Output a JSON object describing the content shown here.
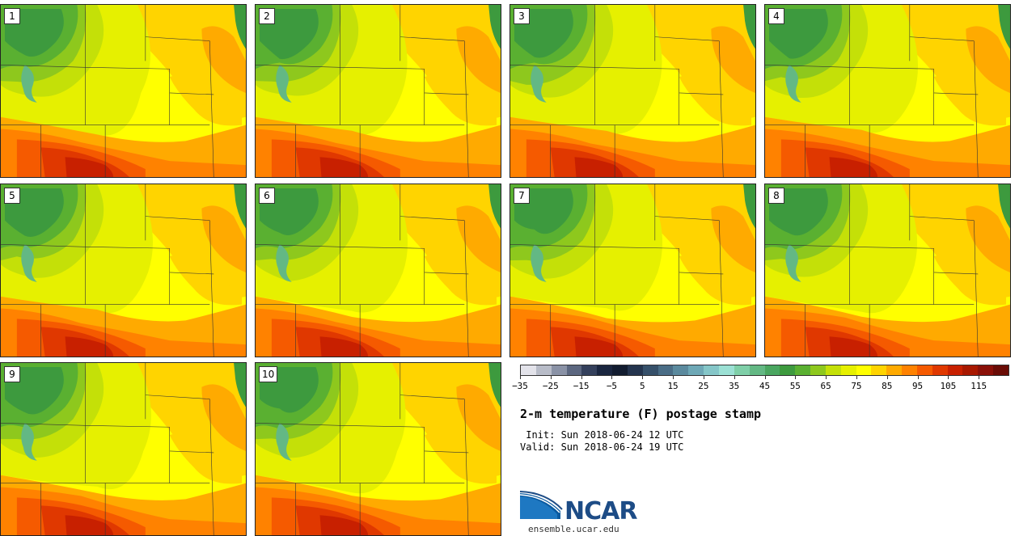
{
  "panels": [
    {
      "label": "1"
    },
    {
      "label": "2"
    },
    {
      "label": "3"
    },
    {
      "label": "4"
    },
    {
      "label": "5"
    },
    {
      "label": "6"
    },
    {
      "label": "7"
    },
    {
      "label": "8"
    },
    {
      "label": "9"
    },
    {
      "label": "10"
    }
  ],
  "colorbar": {
    "colors": [
      "#e3e3ea",
      "#b8bcc8",
      "#8a92a6",
      "#5c6780",
      "#34405c",
      "#1a2640",
      "#121c30",
      "#24344e",
      "#36506a",
      "#4a6d86",
      "#5b8a9e",
      "#6ea8b6",
      "#85c6c8",
      "#9be0d4",
      "#7fcfa8",
      "#63b884",
      "#4aa660",
      "#3d9a3e",
      "#5ab031",
      "#8ec81d",
      "#c4e008",
      "#e6f000",
      "#ffff00",
      "#ffd400",
      "#ffaa00",
      "#ff8200",
      "#f55a00",
      "#e03800",
      "#c82000",
      "#a81800",
      "#8a1008",
      "#6a0c06"
    ],
    "tick_labels": [
      "−35",
      "−25",
      "−15",
      "−5",
      "5",
      "15",
      "25",
      "35",
      "45",
      "55",
      "65",
      "75",
      "85",
      "95",
      "105",
      "115"
    ]
  },
  "title": "2-m temperature (F) postage stamp",
  "init_line": " Init: Sun 2018-06-24 12 UTC",
  "valid_line": "Valid: Sun 2018-06-24 19 UTC",
  "logo": {
    "name": "NCAR",
    "url": "ensemble.ucar.edu"
  }
}
